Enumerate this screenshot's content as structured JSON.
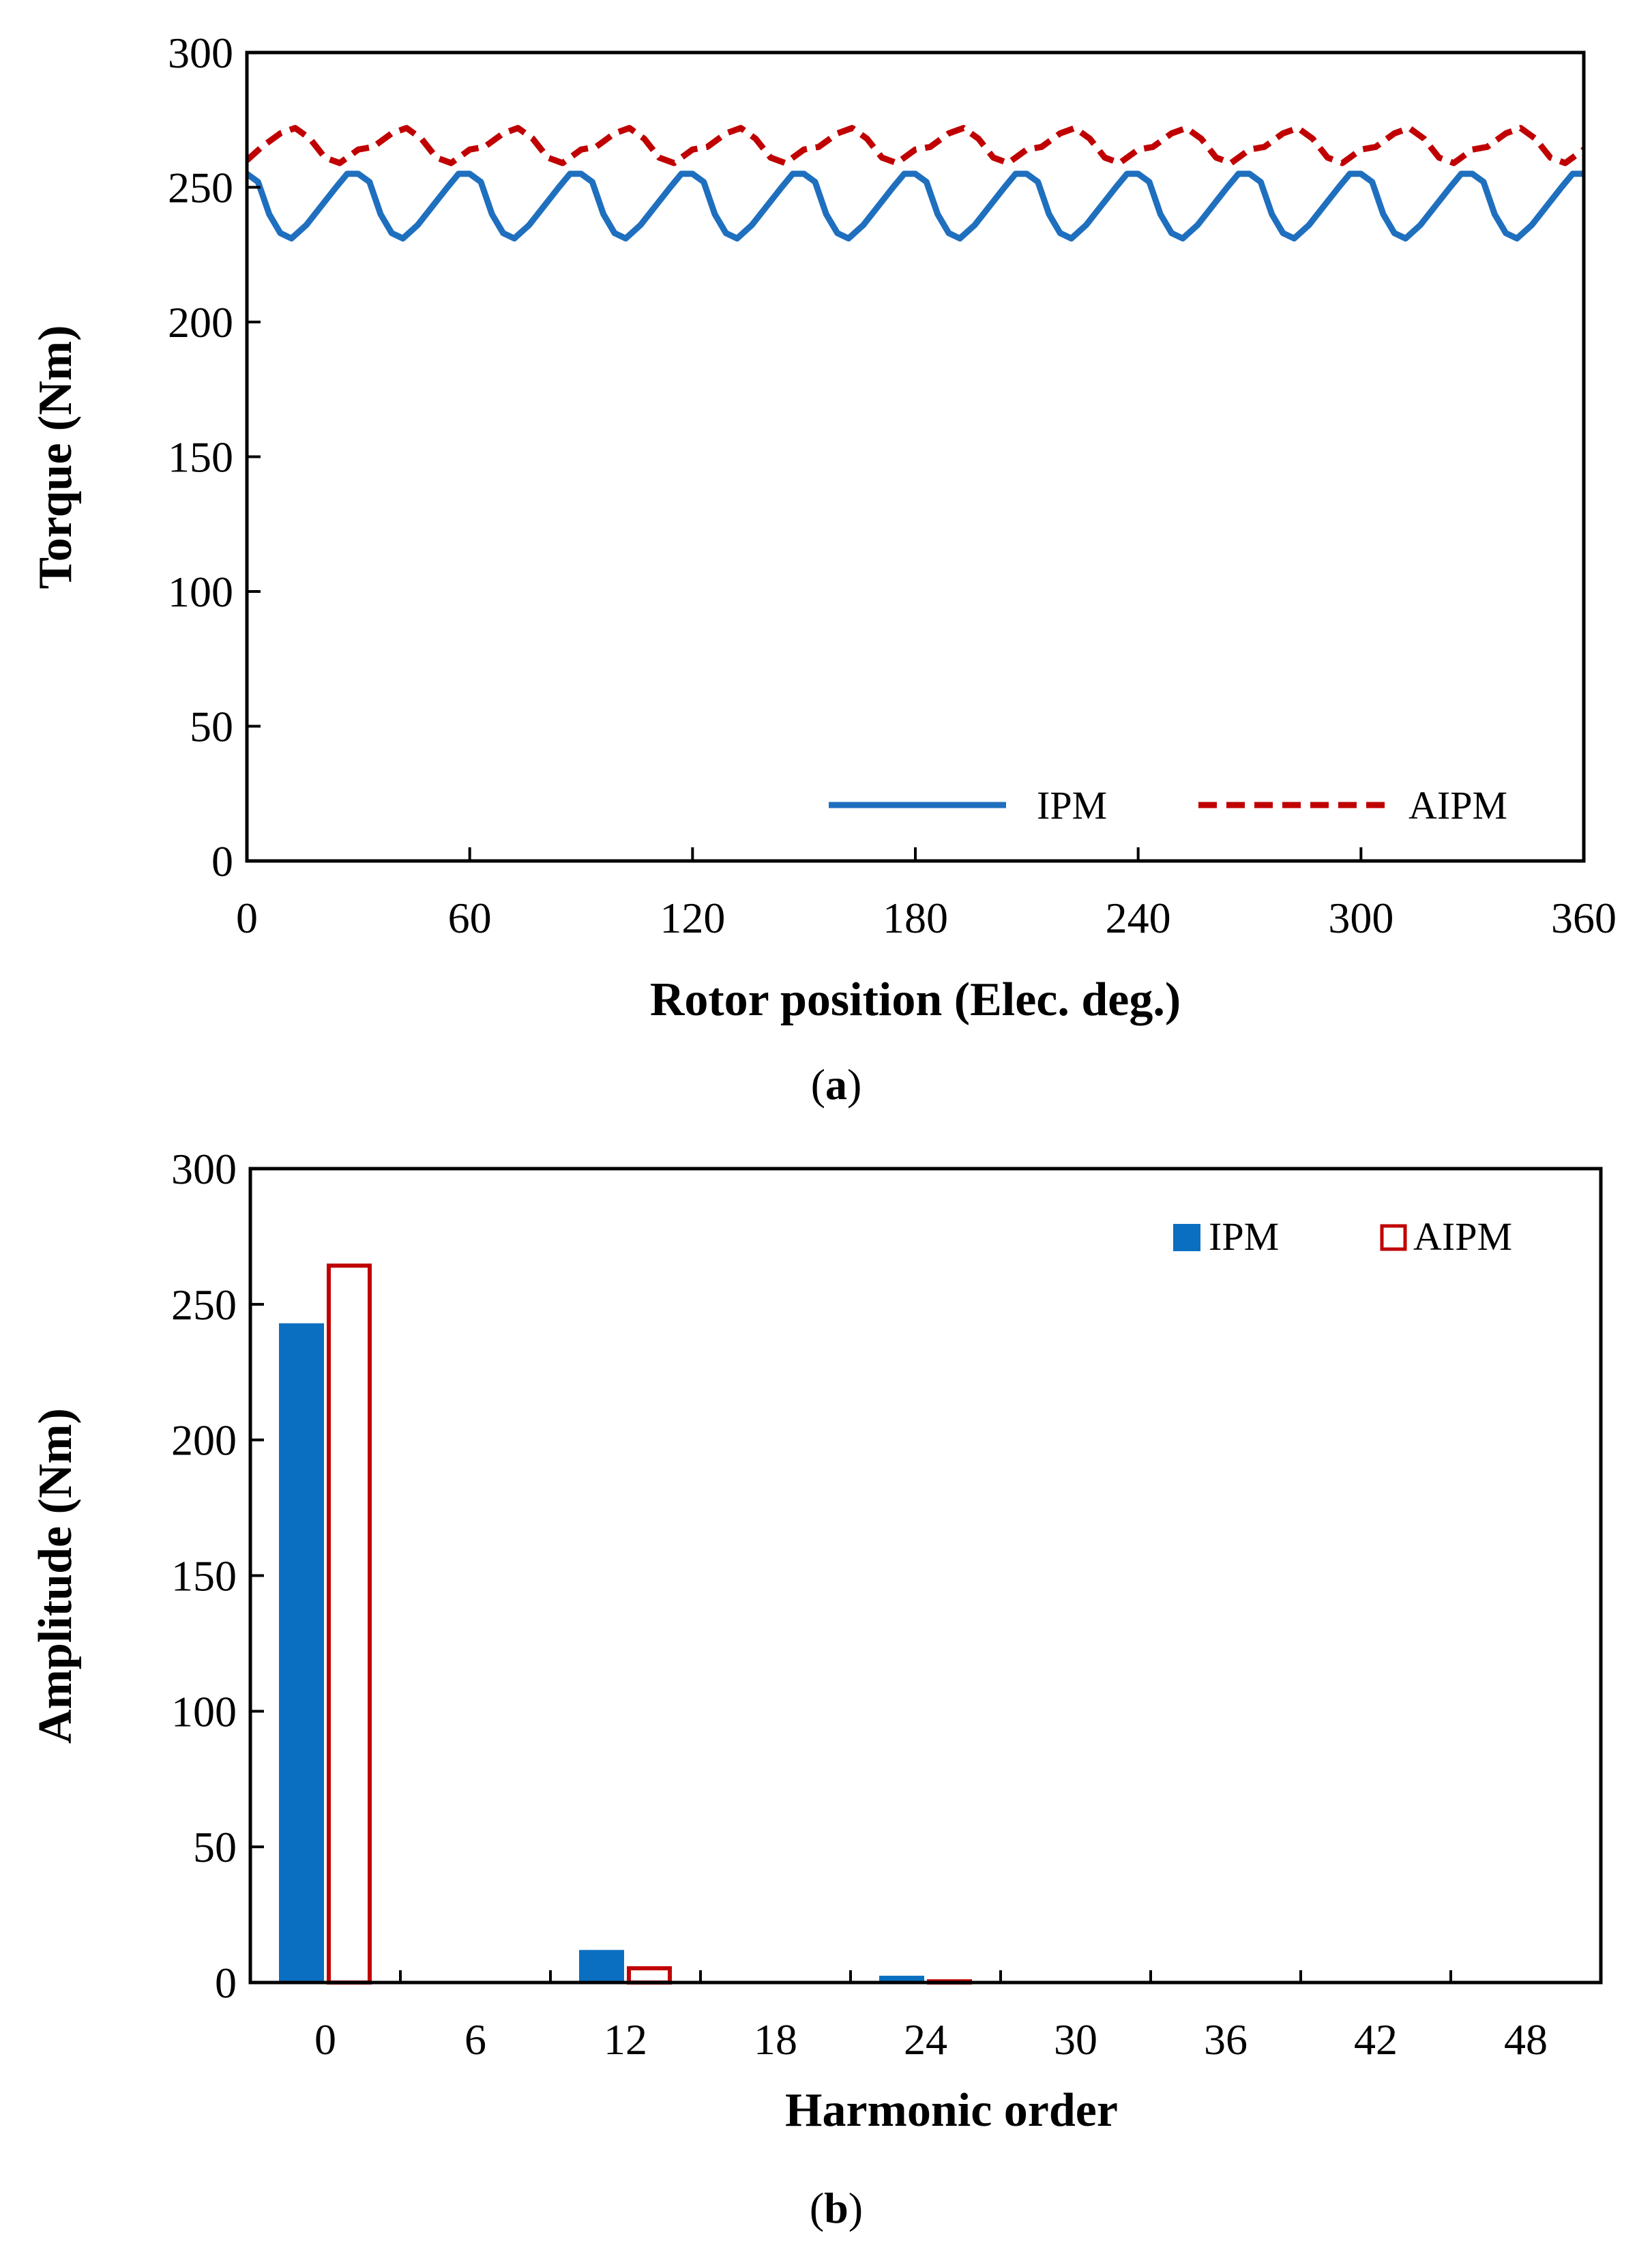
{
  "chart_data": [
    {
      "type": "line",
      "caption": {
        "open": "(",
        "letter": "a",
        "close": ")"
      },
      "xlabel": "Rotor position (Elec. deg.)",
      "ylabel": "Torque (Nm)",
      "xlim": [
        0,
        360
      ],
      "ylim": [
        0,
        300
      ],
      "x_ticks": [
        "0",
        "60",
        "120",
        "180",
        "240",
        "300",
        "360"
      ],
      "y_ticks": [
        "0",
        "50",
        "100",
        "150",
        "200",
        "250",
        "300"
      ],
      "legend_position": "bottom-right",
      "grid": false,
      "period": 30,
      "series": [
        {
          "name": "IPM",
          "color": "#1f6fbf",
          "style": "solid",
          "one_period": [
            [
              0,
              255
            ],
            [
              3,
              252
            ],
            [
              6,
              240
            ],
            [
              9,
              233
            ],
            [
              12,
              231
            ],
            [
              16,
              236
            ],
            [
              20,
              243
            ],
            [
              24,
              250
            ],
            [
              27,
              255
            ],
            [
              30,
              255
            ]
          ]
        },
        {
          "name": "AIPM",
          "color": "#c00000",
          "style": "dashed",
          "one_period": [
            [
              0,
              260
            ],
            [
              4,
              265
            ],
            [
              9,
              270
            ],
            [
              13,
              272
            ],
            [
              17,
              268
            ],
            [
              21,
              261
            ],
            [
              25,
              259
            ],
            [
              28,
              262
            ],
            [
              30,
              264
            ]
          ]
        }
      ]
    },
    {
      "type": "bar",
      "caption": {
        "open": "(",
        "letter": "b",
        "close": ")"
      },
      "xlabel": "Harmonic order",
      "ylabel": "Amplitude (Nm)",
      "ylim": [
        0,
        300
      ],
      "categories": [
        "0",
        "6",
        "12",
        "18",
        "24",
        "30",
        "36",
        "42",
        "48"
      ],
      "y_ticks": [
        "0",
        "50",
        "100",
        "150",
        "200",
        "250",
        "300"
      ],
      "legend_position": "top-right",
      "grid": false,
      "series": [
        {
          "name": "IPM",
          "color": "#0b6fc1",
          "fill": "solid",
          "values": [
            243,
            0.2,
            12,
            0.2,
            2.5,
            0.2,
            0.3,
            0.2,
            0.2
          ]
        },
        {
          "name": "AIPM",
          "color": "#c00000",
          "fill": "hollow",
          "values": [
            265,
            0.2,
            6,
            0.2,
            1.2,
            0.2,
            0.5,
            0.2,
            0.2
          ]
        }
      ]
    }
  ]
}
